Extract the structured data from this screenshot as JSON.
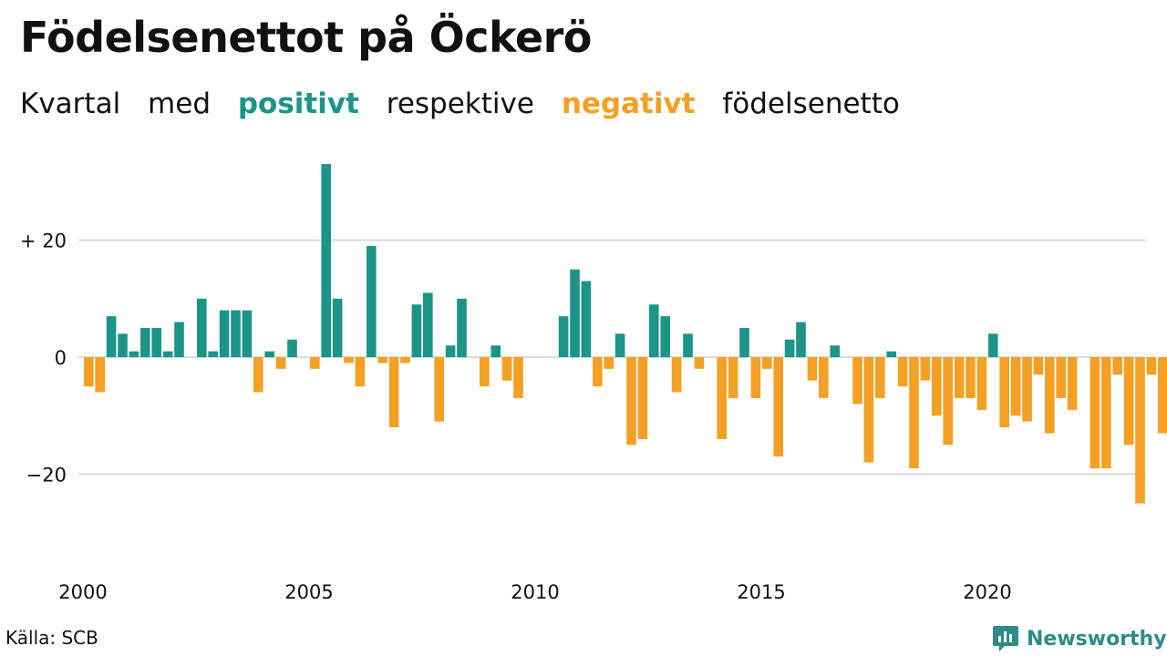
{
  "title": "Födelsenettot på Öckerö",
  "subtitle": {
    "w1": "Kvartal",
    "w2": "med",
    "positive": "positivt",
    "w3": "respektive",
    "negative": "negativt",
    "w4": "födelsenetto"
  },
  "source": "Källa: SCB",
  "brand": "Newsworthy",
  "colors": {
    "positive": "#1b9587",
    "negative": "#f4a024",
    "grid": "#dcdcdc",
    "brand": "#2e8b88"
  },
  "chart_data": {
    "type": "bar",
    "title": "Födelsenettot på Öckerö",
    "xlabel": "",
    "ylabel": "",
    "x_start": 2000,
    "periods_per_year": 4,
    "values": [
      -5,
      -6,
      7,
      4,
      1,
      5,
      5,
      1,
      6,
      0,
      10,
      1,
      8,
      8,
      8,
      -6,
      1,
      -2,
      3,
      0,
      -2,
      33,
      10,
      -1,
      -5,
      19,
      -1,
      -12,
      -1,
      9,
      11,
      -11,
      2,
      10,
      0,
      -5,
      2,
      -4,
      -7,
      0,
      0,
      0,
      7,
      15,
      13,
      -5,
      -2,
      4,
      -15,
      -14,
      9,
      7,
      -6,
      4,
      -2,
      0,
      -14,
      -7,
      5,
      -7,
      -2,
      -17,
      3,
      6,
      -4,
      -7,
      2,
      0,
      -8,
      -18,
      -7,
      1,
      -5,
      -19,
      -4,
      -10,
      -15,
      -7,
      -7,
      -9,
      4,
      -12,
      -10,
      -11,
      -3,
      -13,
      -7,
      -9,
      0,
      -19,
      -19,
      -3,
      -15,
      -25,
      -3,
      -13
    ],
    "ylim": [
      -30,
      36
    ],
    "yticks": [
      {
        "value": 20,
        "label": "+ 20"
      },
      {
        "value": 0,
        "label": "0"
      },
      {
        "value": -20,
        "label": "−20"
      }
    ],
    "xticks": [
      {
        "value": 2000,
        "label": "2000"
      },
      {
        "value": 2005,
        "label": "2005"
      },
      {
        "value": 2010,
        "label": "2010"
      },
      {
        "value": 2015,
        "label": "2015"
      },
      {
        "value": 2020,
        "label": "2020"
      }
    ],
    "grid": true,
    "legend": "subtitle"
  }
}
